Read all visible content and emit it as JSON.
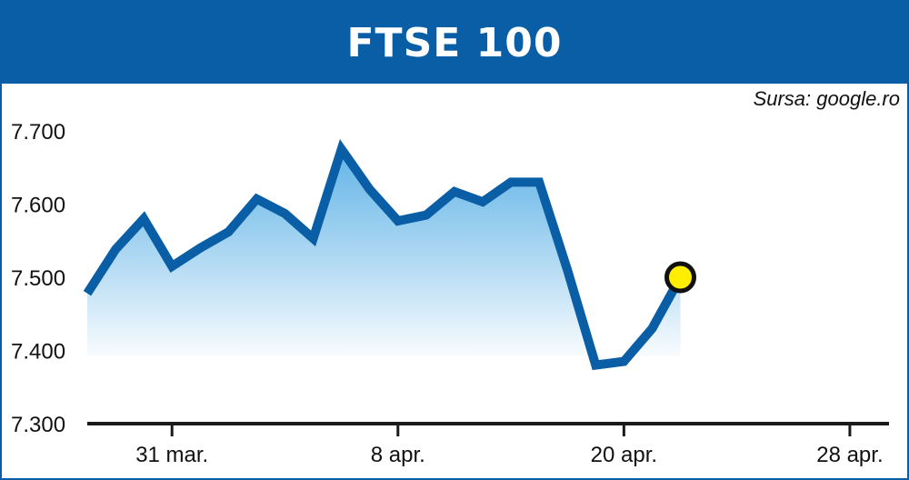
{
  "header": {
    "title": "FTSE 100"
  },
  "source": "Sursa: google.ro",
  "colors": {
    "accent": "#0a5ea6",
    "line": "#0a5ea6",
    "marker": "#ffee00"
  },
  "chart_data": {
    "type": "area",
    "title": "FTSE 100",
    "xlabel": "",
    "ylabel": "",
    "ylim": [
      7300,
      7700
    ],
    "yticks": [
      7300,
      7400,
      7500,
      7600,
      7700
    ],
    "ytick_labels": [
      "7.300",
      "7.400",
      "7.500",
      "7.600",
      "7.700"
    ],
    "xtick_labels": [
      "31 mar.",
      "8 apr.",
      "20 apr.",
      "28 apr."
    ],
    "xtick_index": [
      4,
      12,
      20,
      28
    ],
    "grid": false,
    "series": [
      {
        "values": [
          7478,
          7538,
          7580,
          7515,
          7540,
          7562,
          7607,
          7587,
          7553,
          7675,
          7620,
          7577,
          7585,
          7617,
          7603,
          7630,
          7630,
          7510,
          7380,
          7385,
          7430,
          7500
        ]
      }
    ],
    "x_index": [
      1,
      2,
      3,
      4,
      5,
      6,
      7,
      8,
      9,
      10,
      11,
      12,
      13,
      14,
      15,
      16,
      17,
      18,
      19,
      20,
      21,
      22
    ]
  }
}
